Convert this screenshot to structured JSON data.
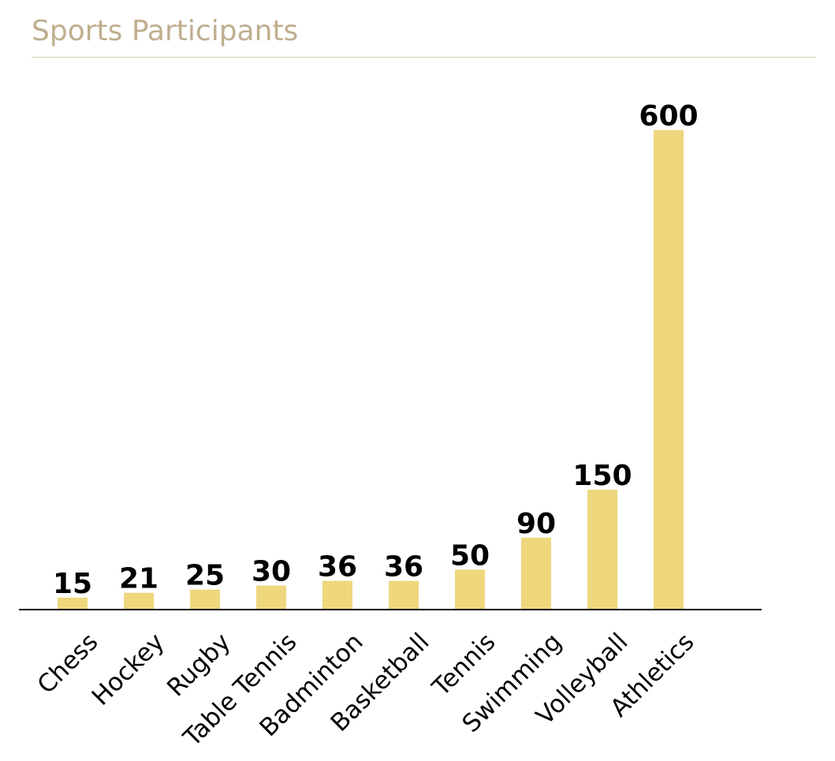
{
  "colors": {
    "title": "#bfae8e",
    "rule": "#d8cfbf",
    "bar": "#eed77d",
    "axis": "#000000",
    "text": "#000000"
  },
  "chart_data": {
    "type": "bar",
    "title": "Sports Participants",
    "xlabel": "",
    "ylabel": "",
    "categories": [
      "Chess",
      "Hockey",
      "Rugby",
      "Table Tennis",
      "Badminton",
      "Basketball",
      "Tennis",
      "Swimming",
      "Volleyball",
      "Athletics"
    ],
    "values": [
      15,
      21,
      25,
      30,
      36,
      36,
      50,
      90,
      150,
      600
    ],
    "ylim": [
      0,
      600
    ],
    "grid": false,
    "legend": "none",
    "data_labels": true
  }
}
